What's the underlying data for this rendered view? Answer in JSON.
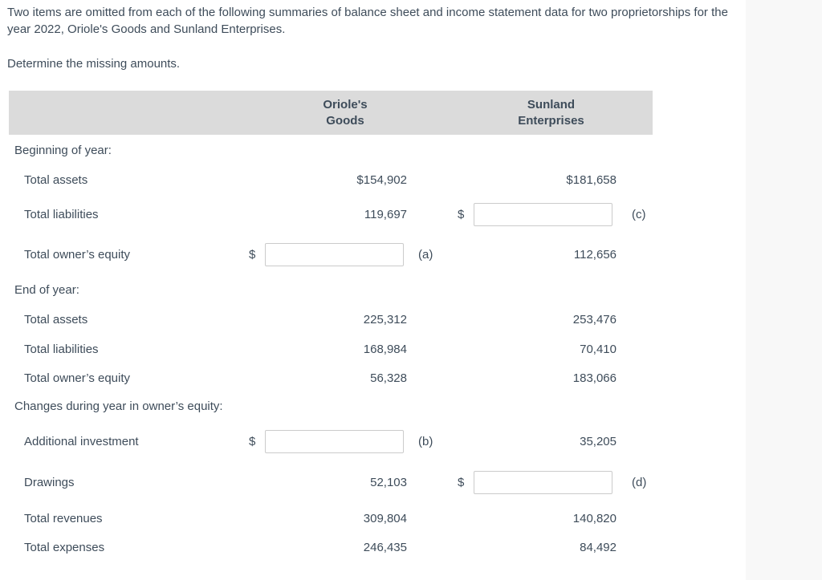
{
  "page": {
    "background": "#ffffff",
    "side_panel_color": "#f8f8f8",
    "text_color": "#3e4c5a",
    "header_band_color": "#dbdbdb"
  },
  "intro": {
    "paragraph": "Two items are omitted from each of the following summaries of balance sheet and income statement data for two proprietorships for the year 2022, Oriole's Goods and Sunland Enterprises.",
    "instruction": "Determine the missing amounts."
  },
  "table": {
    "header": {
      "company1_line1": "Oriole's",
      "company1_line2": "Goods",
      "company2_line1": "Sunland",
      "company2_line2": "Enterprises"
    },
    "rows": [
      {
        "type": "section",
        "label": "Beginning of year:"
      },
      {
        "type": "data",
        "label": "Total assets",
        "oriole": {
          "kind": "text",
          "value": "$154,902"
        },
        "sunland": {
          "kind": "text",
          "value": "$181,658"
        }
      },
      {
        "type": "data",
        "label": "Total liabilities",
        "oriole": {
          "kind": "text",
          "value": "119,697"
        },
        "sunland": {
          "kind": "input",
          "prefix": "$",
          "value": "",
          "suffix": "(c)"
        }
      },
      {
        "type": "data",
        "label": "Total owner’s equity",
        "oriole": {
          "kind": "input",
          "prefix": "$",
          "value": "",
          "suffix": "(a)"
        },
        "sunland": {
          "kind": "text",
          "value": "112,656"
        }
      },
      {
        "type": "section",
        "label": "End of year:"
      },
      {
        "type": "data",
        "label": "Total assets",
        "oriole": {
          "kind": "text",
          "value": "225,312"
        },
        "sunland": {
          "kind": "text",
          "value": "253,476"
        }
      },
      {
        "type": "data",
        "label": "Total liabilities",
        "oriole": {
          "kind": "text",
          "value": "168,984"
        },
        "sunland": {
          "kind": "text",
          "value": "70,410"
        }
      },
      {
        "type": "data",
        "label": "Total owner’s equity",
        "oriole": {
          "kind": "text",
          "value": "56,328"
        },
        "sunland": {
          "kind": "text",
          "value": "183,066"
        }
      },
      {
        "type": "section",
        "label": "Changes during year in owner’s equity:"
      },
      {
        "type": "data",
        "label": "Additional investment",
        "oriole": {
          "kind": "input",
          "prefix": "$",
          "value": "",
          "suffix": "(b)"
        },
        "sunland": {
          "kind": "text",
          "value": "35,205"
        }
      },
      {
        "type": "data",
        "label": "Drawings",
        "oriole": {
          "kind": "text",
          "value": "52,103"
        },
        "sunland": {
          "kind": "input",
          "prefix": "$",
          "value": "",
          "suffix": "(d)"
        }
      },
      {
        "type": "data",
        "label": "Total revenues",
        "oriole": {
          "kind": "text",
          "value": "309,804"
        },
        "sunland": {
          "kind": "text",
          "value": "140,820"
        }
      },
      {
        "type": "data",
        "label": "Total expenses",
        "oriole": {
          "kind": "text",
          "value": "246,435"
        },
        "sunland": {
          "kind": "text",
          "value": "84,492"
        }
      }
    ]
  }
}
